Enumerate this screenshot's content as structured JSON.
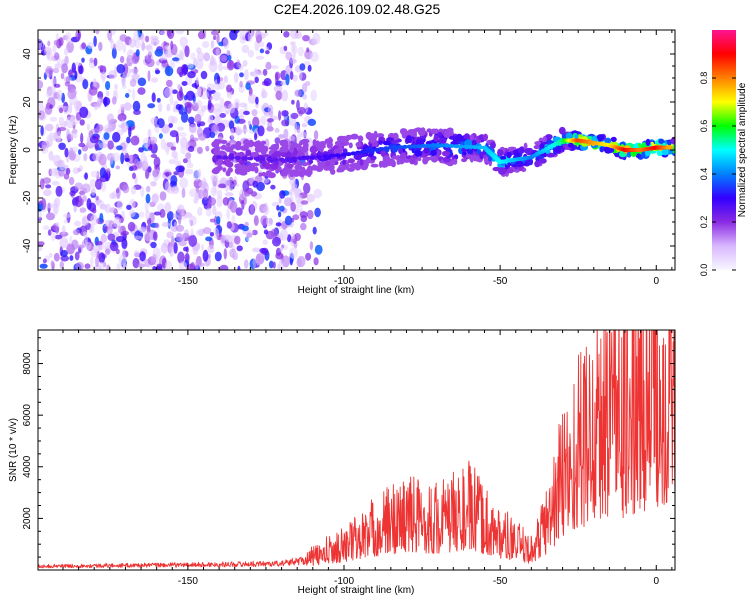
{
  "title": "C2E4.2026.109.02.48.G25",
  "chart_data": [
    {
      "type": "heatmap",
      "xlabel": "Height of straight line (km)",
      "ylabel": "Frequency (Hz)",
      "xlim": [
        -198,
        6
      ],
      "ylim": [
        -50,
        50
      ],
      "x_ticks": [
        -150,
        -100,
        -50,
        0
      ],
      "y_ticks": [
        -40,
        -20,
        0,
        20,
        40
      ],
      "colorbar": {
        "label": "Normalized spectral amplitude",
        "range": [
          0,
          1
        ],
        "ticks": [
          "0.0",
          "0.2",
          "0.4",
          "0.6",
          "0.8"
        ],
        "colormap": [
          "#f7f7ff",
          "#d9b8ff",
          "#8a2be2",
          "#3300ff",
          "#0080ff",
          "#00ffff",
          "#00ff00",
          "#ffff00",
          "#ff8000",
          "#ff0000",
          "#ff1493"
        ]
      },
      "ridge": [
        {
          "x": -140,
          "y": -3,
          "a": 0.25
        },
        {
          "x": -120,
          "y": -4,
          "a": 0.25
        },
        {
          "x": -100,
          "y": -2,
          "a": 0.3
        },
        {
          "x": -85,
          "y": 1,
          "a": 0.35
        },
        {
          "x": -70,
          "y": 2,
          "a": 0.4
        },
        {
          "x": -55,
          "y": 1,
          "a": 0.45
        },
        {
          "x": -50,
          "y": -5,
          "a": 0.5
        },
        {
          "x": -40,
          "y": -3,
          "a": 0.4
        },
        {
          "x": -30,
          "y": 4,
          "a": 0.55
        },
        {
          "x": -25,
          "y": 4,
          "a": 0.85
        },
        {
          "x": -15,
          "y": 2,
          "a": 0.7
        },
        {
          "x": -10,
          "y": 0,
          "a": 0.9
        },
        {
          "x": -5,
          "y": 0,
          "a": 0.8
        },
        {
          "x": 0,
          "y": 1,
          "a": 0.9
        },
        {
          "x": 5,
          "y": 1,
          "a": 0.75
        }
      ]
    },
    {
      "type": "line",
      "xlabel": "Height of straight line (km)",
      "ylabel": "SNR (10 * v/v)",
      "xlim": [
        -198,
        6
      ],
      "ylim": [
        0,
        9300
      ],
      "x_ticks": [
        -150,
        -100,
        -50,
        0
      ],
      "y_ticks": [
        2000,
        4000,
        6000,
        8000
      ],
      "color": "#ee3333",
      "envelope": [
        {
          "x": -198,
          "y": 150
        },
        {
          "x": -150,
          "y": 200
        },
        {
          "x": -120,
          "y": 250
        },
        {
          "x": -112,
          "y": 400
        },
        {
          "x": -100,
          "y": 900
        },
        {
          "x": -90,
          "y": 1500
        },
        {
          "x": -80,
          "y": 2000
        },
        {
          "x": -70,
          "y": 1800
        },
        {
          "x": -60,
          "y": 2200
        },
        {
          "x": -50,
          "y": 1300
        },
        {
          "x": -40,
          "y": 700
        },
        {
          "x": -35,
          "y": 1800
        },
        {
          "x": -30,
          "y": 3500
        },
        {
          "x": -25,
          "y": 4500
        },
        {
          "x": -20,
          "y": 5300
        },
        {
          "x": -15,
          "y": 5800
        },
        {
          "x": -10,
          "y": 5800
        },
        {
          "x": -5,
          "y": 6400
        },
        {
          "x": 0,
          "y": 7000
        },
        {
          "x": 6,
          "y": 7500
        }
      ]
    }
  ]
}
